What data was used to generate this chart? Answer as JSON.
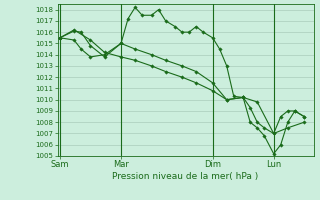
{
  "background_color": "#cceedd",
  "grid_color": "#aaccbb",
  "line_color": "#1a6b1a",
  "marker_color": "#1a6b1a",
  "xlabel": "Pression niveau de la mer( hPa )",
  "ylim": [
    1005,
    1018.5
  ],
  "yticks": [
    1005,
    1006,
    1007,
    1008,
    1009,
    1010,
    1011,
    1012,
    1013,
    1014,
    1015,
    1016,
    1017,
    1018
  ],
  "xtick_labels": [
    "Sam",
    "Mar",
    "Dim",
    "Lun"
  ],
  "xtick_positions": [
    0,
    26,
    65,
    91
  ],
  "vline_positions": [
    0,
    26,
    65,
    91
  ],
  "series1_x": [
    0,
    6,
    9,
    13,
    19,
    26,
    29,
    32,
    35,
    39,
    42,
    45,
    49,
    52,
    55,
    58,
    61,
    65,
    68,
    71,
    74,
    78,
    81,
    84,
    87,
    91,
    94,
    97,
    100,
    104
  ],
  "series1_y": [
    1015.5,
    1016.1,
    1016.0,
    1014.8,
    1013.8,
    1015.0,
    1017.2,
    1018.2,
    1017.5,
    1017.5,
    1018.0,
    1017.0,
    1016.5,
    1016.0,
    1016.0,
    1016.5,
    1016.0,
    1015.5,
    1014.5,
    1013.0,
    1010.3,
    1010.2,
    1009.3,
    1008.0,
    1007.5,
    1007.0,
    1008.5,
    1009.0,
    1009.0,
    1008.5
  ],
  "series2_x": [
    0,
    6,
    9,
    13,
    19,
    26,
    32,
    39,
    45,
    52,
    58,
    65,
    71,
    78,
    84,
    91,
    97,
    104
  ],
  "series2_y": [
    1015.5,
    1015.3,
    1014.5,
    1013.8,
    1014.0,
    1015.0,
    1014.5,
    1014.0,
    1013.5,
    1013.0,
    1012.5,
    1011.5,
    1010.0,
    1010.2,
    1009.8,
    1007.0,
    1007.5,
    1008.0
  ],
  "series3_x": [
    0,
    6,
    13,
    19,
    26,
    32,
    39,
    45,
    52,
    58,
    65,
    71,
    78,
    81,
    84,
    87,
    91,
    94,
    97,
    100,
    104
  ],
  "series3_y": [
    1015.5,
    1016.2,
    1015.3,
    1014.2,
    1013.8,
    1013.5,
    1013.0,
    1012.5,
    1012.0,
    1011.5,
    1010.8,
    1010.0,
    1010.2,
    1008.0,
    1007.5,
    1006.8,
    1005.2,
    1006.0,
    1008.0,
    1009.0,
    1008.5
  ],
  "xlim": [
    -1,
    108
  ],
  "figsize": [
    3.2,
    2.0
  ],
  "dpi": 100
}
